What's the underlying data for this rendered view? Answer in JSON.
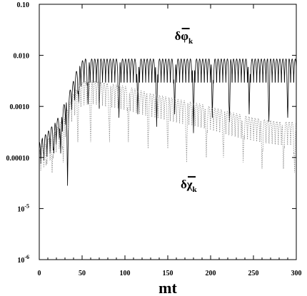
{
  "chart_data": {
    "type": "line",
    "title": "",
    "xlabel": "mt",
    "ylabel": "",
    "xlim": [
      0,
      300
    ],
    "ylim": [
      1e-06,
      0.1
    ],
    "yscale": "log",
    "grid": false,
    "legend": "none",
    "x_ticks": [
      0,
      50,
      100,
      150,
      200,
      250,
      300
    ],
    "x_tick_labels": [
      "0",
      "50",
      "100",
      "150",
      "200",
      "250",
      "300"
    ],
    "y_ticks": [
      1e-06,
      1e-05,
      0.0001,
      0.001,
      0.01,
      0.1
    ],
    "y_tick_labels": [
      "10-6",
      "10-5",
      "0.00010",
      "0.0010",
      "0.010",
      "0.10"
    ],
    "annotations": [
      {
        "id": "phi",
        "base": "δφ",
        "sub": "k",
        "anchor_x": 158,
        "anchor_y": 0.02
      },
      {
        "id": "chi",
        "base": "δχ",
        "sub": "k",
        "anchor_x": 165,
        "anchor_y": 2.5e-05
      }
    ],
    "series": [
      {
        "id": "phi",
        "style": "solid",
        "color": "#000000",
        "envelope": [
          [
            0,
            0.0002
          ],
          [
            12,
            0.00035
          ],
          [
            22,
            0.0006
          ],
          [
            30,
            0.0012
          ],
          [
            38,
            0.0025
          ],
          [
            45,
            0.006
          ],
          [
            52,
            0.0085
          ],
          [
            300,
            0.0085
          ]
        ],
        "oscillation_period": 3.6,
        "dips": [
          [
            5,
            0.00012
          ],
          [
            17,
            0.00012
          ],
          [
            25,
            0.00012
          ],
          [
            33,
            2.8e-05
          ],
          [
            46,
            0.0012
          ],
          [
            57,
            0.0011
          ],
          [
            70,
            0.0009
          ],
          [
            93,
            0.0006
          ],
          [
            115,
            0.0007
          ],
          [
            137,
            0.0004
          ],
          [
            158,
            0.0007
          ],
          [
            180,
            0.0003
          ],
          [
            202,
            0.0006
          ],
          [
            222,
            0.0005
          ],
          [
            245,
            0.0007
          ],
          [
            268,
            0.0005
          ],
          [
            290,
            0.0006
          ]
        ]
      },
      {
        "id": "chi",
        "style": "dotted",
        "color": "#888888",
        "envelope": [
          [
            0,
            0.00015
          ],
          [
            12,
            0.00025
          ],
          [
            22,
            0.0004
          ],
          [
            32,
            0.0008
          ],
          [
            40,
            0.0018
          ],
          [
            50,
            0.003
          ],
          [
            60,
            0.0033
          ],
          [
            80,
            0.0028
          ],
          [
            100,
            0.0025
          ],
          [
            130,
            0.0018
          ],
          [
            160,
            0.0014
          ],
          [
            190,
            0.0011
          ],
          [
            220,
            0.0008
          ],
          [
            250,
            0.0006
          ],
          [
            280,
            0.0005
          ],
          [
            300,
            0.0005
          ]
        ],
        "oscillation_period": 3.6,
        "dips": [
          [
            8,
            7e-05
          ],
          [
            15,
            5e-05
          ],
          [
            28,
            8e-05
          ],
          [
            45,
            0.0002
          ],
          [
            60,
            0.0002
          ],
          [
            82,
            0.0002
          ],
          [
            104,
            0.0002
          ],
          [
            127,
            0.00015
          ],
          [
            150,
            0.00015
          ],
          [
            172,
            8e-05
          ],
          [
            195,
            0.0001
          ],
          [
            215,
            0.0001
          ],
          [
            238,
            8e-05
          ],
          [
            260,
            6e-05
          ],
          [
            285,
            6e-05
          ],
          [
            298,
            5e-05
          ]
        ]
      }
    ]
  }
}
